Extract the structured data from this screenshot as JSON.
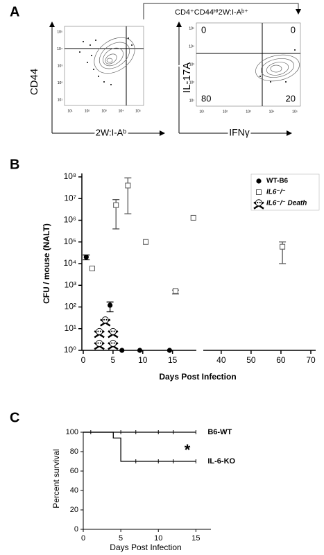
{
  "panel_a": {
    "label": "A",
    "header": "CD4⁺CD44ᴴⁱ2W:I-Aᵇ⁺",
    "plots": [
      {
        "y_label": "CD44",
        "x_label": "2W:I-Aᵇ",
        "tick_labels": [
          "10¹",
          "10²",
          "10³",
          "10⁴",
          "10⁵"
        ]
      },
      {
        "y_label": "IL-17A",
        "x_label": "IFNγ",
        "tick_labels": [
          "10¹",
          "10²",
          "10³",
          "10⁴",
          "10⁵"
        ],
        "quadrant_percentages": [
          0,
          0,
          80,
          20
        ]
      }
    ]
  },
  "chart_data": [
    {
      "type": "scatter",
      "panel_label": "B",
      "x_label": "Days Post Infection",
      "y_label": "CFU / mouse (NALT)",
      "y_log": true,
      "ylim": [
        1,
        100000000
      ],
      "yticks": [
        {
          "value": 1,
          "label": "10⁰"
        },
        {
          "value": 10,
          "label": "10¹"
        },
        {
          "value": 100,
          "label": "10²"
        },
        {
          "value": 1000,
          "label": "10³"
        },
        {
          "value": 10000,
          "label": "10⁴"
        },
        {
          "value": 100000,
          "label": "10⁵"
        },
        {
          "value": 1000000,
          "label": "10⁶"
        },
        {
          "value": 10000000,
          "label": "10⁷"
        },
        {
          "value": 100000000,
          "label": "10⁸"
        }
      ],
      "x_segments": [
        [
          0,
          19
        ],
        [
          34,
          70
        ]
      ],
      "xticks": [
        0,
        5,
        10,
        15,
        40,
        50,
        60,
        70
      ],
      "legend": "top-right",
      "series": [
        {
          "name": "WT-B6",
          "marker": "circle",
          "color": "#000000",
          "x": [
            0.5,
            4.5,
            6.5,
            9.5,
            14.5
          ],
          "values": [
            20000,
            120,
            1,
            1,
            1
          ],
          "err_low": [
            15000,
            60,
            null,
            null,
            null
          ],
          "err_high": [
            25000,
            170,
            null,
            null,
            null
          ]
        },
        {
          "name": "IL6⁻/⁻",
          "marker": "square",
          "color": "#555555",
          "x": [
            1.5,
            5.5,
            7.5,
            10.5,
            15.5,
            18.5,
            60.5
          ],
          "values": [
            6000,
            5000000,
            40000000,
            100000,
            550,
            1300000,
            60000
          ],
          "err_low": [
            null,
            400000,
            2000000,
            null,
            400,
            null,
            10000
          ],
          "err_high": [
            null,
            9000000,
            90000000,
            null,
            600,
            null,
            100000
          ]
        },
        {
          "name": "IL6⁻/⁻ Death",
          "marker": "skull",
          "color": "#000000",
          "x": [
            3.7,
            2.7,
            5,
            2.7,
            5
          ],
          "values": [
            24,
            7,
            7,
            2,
            2
          ]
        }
      ]
    },
    {
      "type": "survival",
      "panel_label": "C",
      "x_label": "Days Post Infection",
      "y_label": "Percent survival",
      "xlim": [
        0,
        17
      ],
      "xticks": [
        0,
        5,
        10,
        15
      ],
      "ylim": [
        0,
        100
      ],
      "yticks": [
        0,
        20,
        40,
        60,
        80,
        100
      ],
      "annotation": "*",
      "series": [
        {
          "name": "B6-WT",
          "color": "#000000",
          "x": [
            0,
            15
          ],
          "values": [
            100,
            100
          ],
          "censored_x": [
            1,
            5,
            7,
            10,
            12,
            15
          ],
          "censored_y": [
            100,
            100,
            100,
            100,
            100,
            100
          ]
        },
        {
          "name": "IL-6-KO",
          "color": "#000000",
          "x": [
            0,
            4,
            4,
            5,
            5,
            15
          ],
          "values": [
            100,
            100,
            94,
            94,
            70,
            70
          ],
          "censored_x": [
            7,
            10,
            12,
            15
          ],
          "censored_y": [
            70,
            70,
            70,
            70
          ]
        }
      ]
    }
  ]
}
